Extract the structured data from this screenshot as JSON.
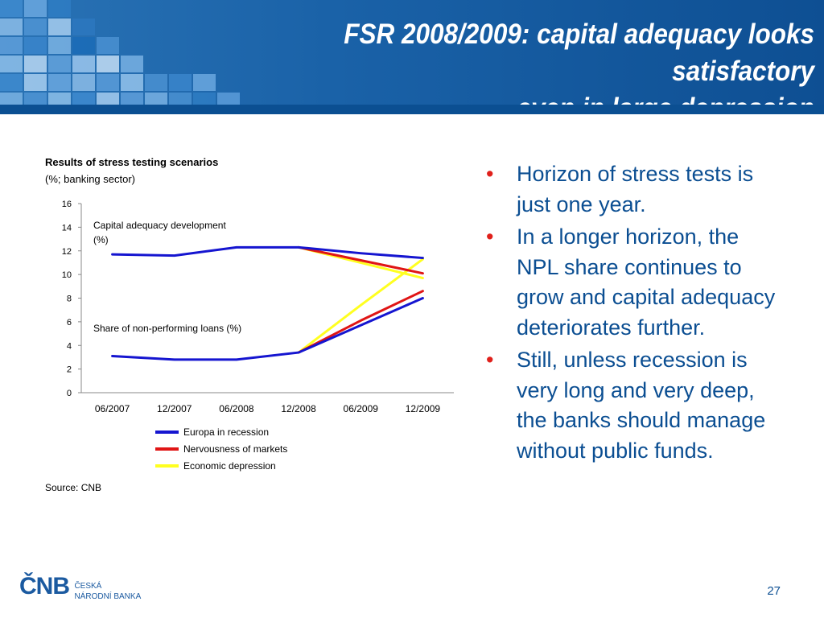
{
  "header": {
    "title_line1": "FSR 2008/2009: capital adequacy looks satisfactory",
    "title_line2": "even in large depression",
    "background": "#1a62a8"
  },
  "chart_data": {
    "type": "line",
    "title": "Results of stress testing scenarios",
    "subtitle": "(%; banking sector)",
    "categories": [
      "06/2007",
      "12/2007",
      "06/2008",
      "12/2008",
      "06/2009",
      "12/2009"
    ],
    "ylim": [
      0,
      16
    ],
    "yticks": [
      "0",
      "2",
      "4",
      "6",
      "8",
      "10",
      "12",
      "14",
      "16"
    ],
    "grid": false,
    "legend_position": "bottom",
    "annotations": {
      "capital_line1": "Capital adequacy development",
      "capital_line2": "(%)",
      "npl": "Share of non-performing loans (%)"
    },
    "series": [
      {
        "name": "Europa in recession",
        "color": "#1515d0",
        "capital_adequacy": [
          11.7,
          11.6,
          12.3,
          12.3,
          11.8,
          11.4
        ],
        "npl_share": [
          3.1,
          2.8,
          2.8,
          3.4,
          5.7,
          8.0
        ]
      },
      {
        "name": "Nervousness of markets",
        "color": "#e01515",
        "capital_adequacy": [
          null,
          null,
          null,
          12.3,
          11.2,
          10.1
        ],
        "npl_share": [
          null,
          null,
          null,
          3.4,
          6.1,
          8.6
        ]
      },
      {
        "name": "Economic depression",
        "color": "#ffff20",
        "capital_adequacy": [
          null,
          null,
          null,
          12.3,
          11.0,
          9.7
        ],
        "npl_share": [
          null,
          null,
          null,
          3.4,
          7.4,
          11.3
        ]
      }
    ],
    "source": "Source: CNB"
  },
  "bullets": [
    "Horizon of stress tests is just one year.",
    "In a longer horizon, the NPL share continues to grow and capital adequacy deteriorates further.",
    "Still, unless recession is very long and very deep, the banks should manage without public funds."
  ],
  "bullet_glyph": "•",
  "footer": {
    "logo_mark": "ČNB",
    "logo_line1": "ČESKÁ",
    "logo_line2": "NÁRODNÍ BANKA",
    "page_number": "27"
  }
}
